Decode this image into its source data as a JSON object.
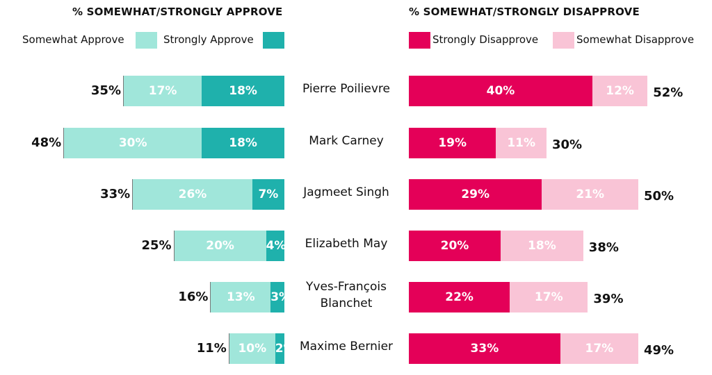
{
  "chart_data": {
    "type": "bar",
    "categories": [
      "Pierre Poilievre",
      "Mark Carney",
      "Jagmeet Singh",
      "Elizabeth May",
      "Yves-François Blanchet",
      "Maxime Bernier"
    ],
    "approve": {
      "title": "% SOMEWHAT/STRONGLY APPROVE",
      "series": [
        {
          "name": "Somewhat Approve",
          "color": "#a0e6da",
          "values": [
            17,
            30,
            26,
            20,
            13,
            10
          ]
        },
        {
          "name": "Strongly Approve",
          "color": "#1fb1ac",
          "values": [
            18,
            18,
            7,
            4,
            3,
            2
          ]
        }
      ],
      "totals": [
        35,
        48,
        33,
        25,
        16,
        11
      ]
    },
    "disapprove": {
      "title": "% SOMEWHAT/STRONGLY DISAPPROVE",
      "series": [
        {
          "name": "Strongly Disapprove",
          "color": "#e40058",
          "values": [
            40,
            19,
            29,
            20,
            22,
            33
          ]
        },
        {
          "name": "Somewhat Disapprove",
          "color": "#f9c4d6",
          "values": [
            12,
            11,
            21,
            18,
            17,
            17
          ]
        }
      ],
      "totals": [
        52,
        30,
        50,
        38,
        39,
        49
      ]
    },
    "value_suffix": "%"
  }
}
